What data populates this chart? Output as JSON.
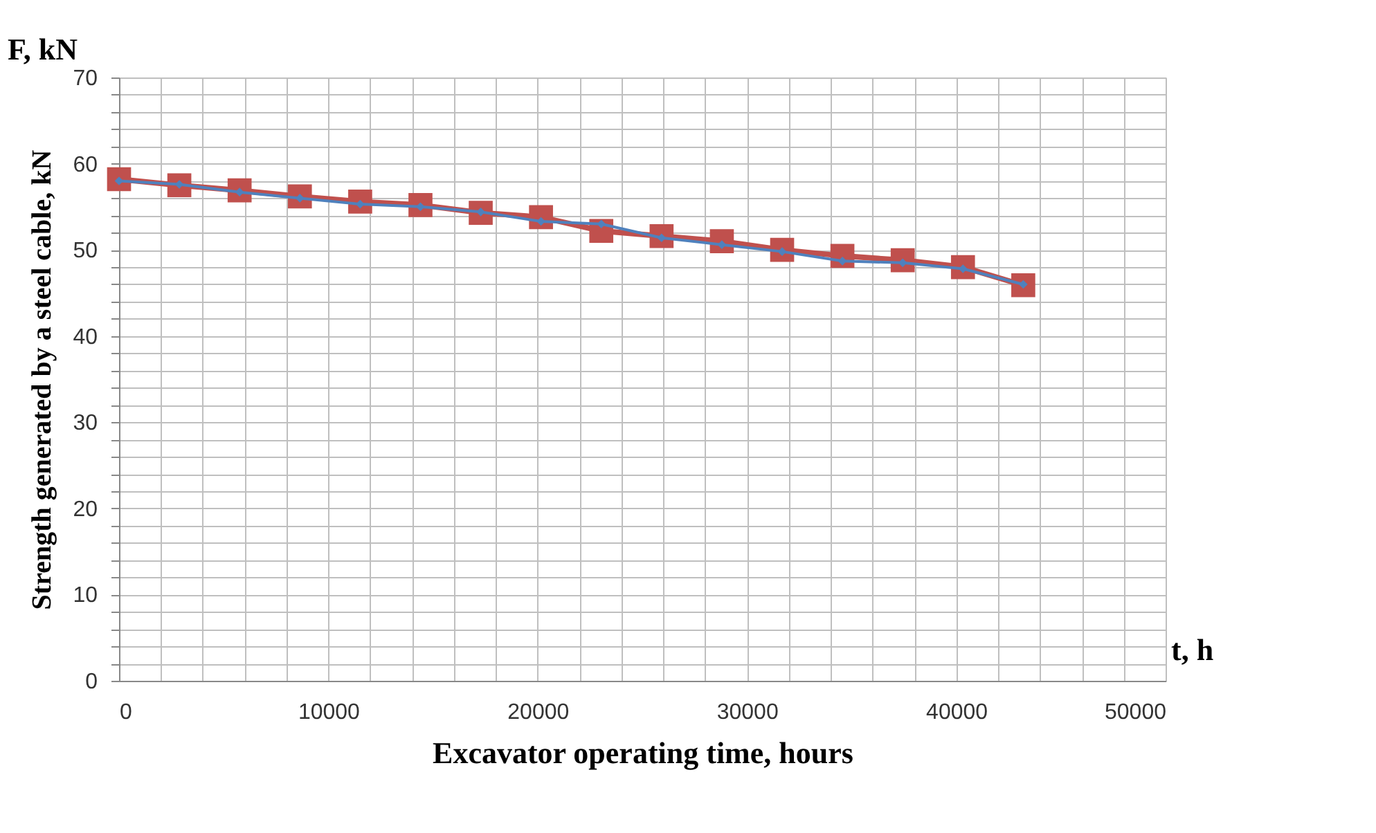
{
  "chart_data": {
    "type": "line",
    "xlabel": "Excavator operating time, hours",
    "ylabel": "Strength generated by a steel cable, kN",
    "annotations": [
      "F, kN",
      "t, h"
    ],
    "x": [
      0,
      2880,
      5760,
      8640,
      11520,
      14400,
      17280,
      20160,
      23040,
      25920,
      28800,
      31680,
      34560,
      37440,
      40320,
      43200
    ],
    "series": [
      {
        "color": "#4f81bd",
        "marker": "diamond",
        "values": [
          58.0,
          57.6,
          56.7,
          56.0,
          55.3,
          55.0,
          54.4,
          53.3,
          53.0,
          51.4,
          50.6,
          49.8,
          48.7,
          48.5,
          47.8,
          46.0
        ]
      },
      {
        "color": "#c0504d",
        "marker": "square",
        "values": [
          58.2,
          57.5,
          56.9,
          56.2,
          55.6,
          55.2,
          54.3,
          53.8,
          52.2,
          51.6,
          51.0,
          50.0,
          49.3,
          48.8,
          48.0,
          45.9
        ]
      }
    ],
    "xlim": [
      0,
      50000
    ],
    "xticks": [
      0,
      {
        "value": 2000,
        "label": null
      },
      {
        "value": 4000,
        "label": null
      },
      {
        "value": 6000,
        "label": null
      },
      {
        "value": 8000,
        "label": null
      },
      10000,
      {
        "value": 12000,
        "label": null
      },
      {
        "value": 14000,
        "label": null
      },
      {
        "value": 16000,
        "label": null
      },
      {
        "value": 18000,
        "label": null
      },
      20000,
      {
        "value": 22000,
        "label": null
      },
      {
        "value": 24000,
        "label": null
      },
      {
        "value": 26000,
        "label": null
      },
      {
        "value": 28000,
        "label": null
      },
      30000,
      {
        "value": 32000,
        "label": null
      },
      {
        "value": 34000,
        "label": null
      },
      {
        "value": 36000,
        "label": null
      },
      {
        "value": 38000,
        "label": null
      },
      40000,
      {
        "value": 42000,
        "label": null
      },
      {
        "value": 44000,
        "label": null
      },
      {
        "value": 46000,
        "label": null
      },
      {
        "value": 48000,
        "label": null
      },
      50000
    ],
    "ylim": [
      0,
      70
    ],
    "yticks": [
      0,
      {
        "value": 2,
        "label": null
      },
      {
        "value": 4,
        "label": null
      },
      {
        "value": 6,
        "label": null
      },
      {
        "value": 8,
        "label": null
      },
      10,
      {
        "value": 12,
        "label": null
      },
      {
        "value": 14,
        "label": null
      },
      {
        "value": 16,
        "label": null
      },
      {
        "value": 18,
        "label": null
      },
      20,
      {
        "value": 22,
        "label": null
      },
      {
        "value": 24,
        "label": null
      },
      {
        "value": 26,
        "label": null
      },
      {
        "value": 28,
        "label": null
      },
      30,
      {
        "value": 32,
        "label": null
      },
      {
        "value": 34,
        "label": null
      },
      {
        "value": 36,
        "label": null
      },
      {
        "value": 38,
        "label": null
      },
      40,
      {
        "value": 42,
        "label": null
      },
      {
        "value": 44,
        "label": null
      },
      {
        "value": 46,
        "label": null
      },
      {
        "value": 48,
        "label": null
      },
      50,
      {
        "value": 52,
        "label": null
      },
      {
        "value": 54,
        "label": null
      },
      {
        "value": 56,
        "label": null
      },
      {
        "value": 58,
        "label": null
      },
      60,
      {
        "value": 62,
        "label": null
      },
      {
        "value": 64,
        "label": null
      },
      {
        "value": 66,
        "label": null
      },
      {
        "value": 68,
        "label": null
      },
      70
    ],
    "grid": true,
    "line_style": "solid"
  }
}
